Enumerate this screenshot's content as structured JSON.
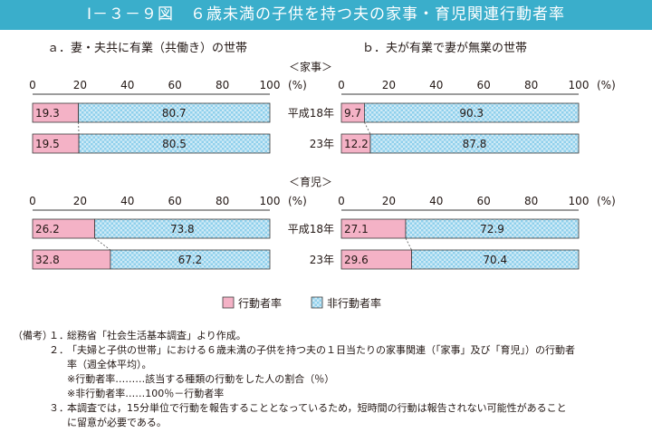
{
  "title": "Ⅰ－３－９図　６歳未満の子供を持つ夫の家事・育児関連行動者率",
  "panel_headers": [
    "ａ．妻・夫共に有業（共働き）の世帯",
    "ｂ．夫が有業で妻が無業の世帯"
  ],
  "section_headers": [
    "＜家事＞",
    "＜育児＞"
  ],
  "axis_ticks": [
    "0",
    "20",
    "40",
    "60",
    "80",
    "100"
  ],
  "axis_unit": "(%)",
  "row_labels": [
    "平成18年",
    "23年"
  ],
  "legend": {
    "actor": "行動者率",
    "non_actor": "非行動者率"
  },
  "colors": {
    "actor": "#f4b2c6",
    "non_actor": "#9fd8ee",
    "bar_border": "#3a3a3a"
  },
  "chart_data": [
    {
      "type": "bar",
      "orientation": "horizontal",
      "stacked": true,
      "panel": "ａ．妻・夫共に有業（共働き）の世帯",
      "section": "＜家事＞",
      "categories": [
        "平成18年",
        "23年"
      ],
      "xlim": [
        0,
        100
      ],
      "series": [
        {
          "name": "行動者率",
          "values": [
            19.3,
            19.5
          ]
        },
        {
          "name": "非行動者率",
          "values": [
            80.7,
            80.5
          ]
        }
      ]
    },
    {
      "type": "bar",
      "orientation": "horizontal",
      "stacked": true,
      "panel": "ｂ．夫が有業で妻が無業の世帯",
      "section": "＜家事＞",
      "categories": [
        "平成18年",
        "23年"
      ],
      "xlim": [
        0,
        100
      ],
      "series": [
        {
          "name": "行動者率",
          "values": [
            9.7,
            12.2
          ]
        },
        {
          "name": "非行動者率",
          "values": [
            90.3,
            87.8
          ]
        }
      ]
    },
    {
      "type": "bar",
      "orientation": "horizontal",
      "stacked": true,
      "panel": "ａ．妻・夫共に有業（共働き）の世帯",
      "section": "＜育児＞",
      "categories": [
        "平成18年",
        "23年"
      ],
      "xlim": [
        0,
        100
      ],
      "series": [
        {
          "name": "行動者率",
          "values": [
            26.2,
            32.8
          ]
        },
        {
          "name": "非行動者率",
          "values": [
            73.8,
            67.2
          ]
        }
      ]
    },
    {
      "type": "bar",
      "orientation": "horizontal",
      "stacked": true,
      "panel": "ｂ．夫が有業で妻が無業の世帯",
      "section": "＜育児＞",
      "categories": [
        "平成18年",
        "23年"
      ],
      "xlim": [
        0,
        100
      ],
      "series": [
        {
          "name": "行動者率",
          "values": [
            27.1,
            29.6
          ]
        },
        {
          "name": "非行動者率",
          "values": [
            72.9,
            70.4
          ]
        }
      ]
    }
  ],
  "notes": {
    "label": "（備考）",
    "items": [
      {
        "num": "１．",
        "text": "総務省「社会生活基本調査」より作成。"
      },
      {
        "num": "２．",
        "text": "「夫婦と子供の世帯」における６歳未満の子供を持つ夫の１日当たりの家事関連（「家事」及び「育児」）の行動者"
      },
      {
        "num": "",
        "text": "率（週全体平均）。"
      },
      {
        "num": "",
        "text": "※行動者率………該当する種類の行動をした人の割合（％）"
      },
      {
        "num": "",
        "text": "※非行動者率……100％－行動者率"
      },
      {
        "num": "３．",
        "text": "本調査では，15分単位で行動を報告することとなっているため，短時間の行動は報告されない可能性があること"
      },
      {
        "num": "",
        "text": "に留意が必要である。"
      }
    ]
  }
}
